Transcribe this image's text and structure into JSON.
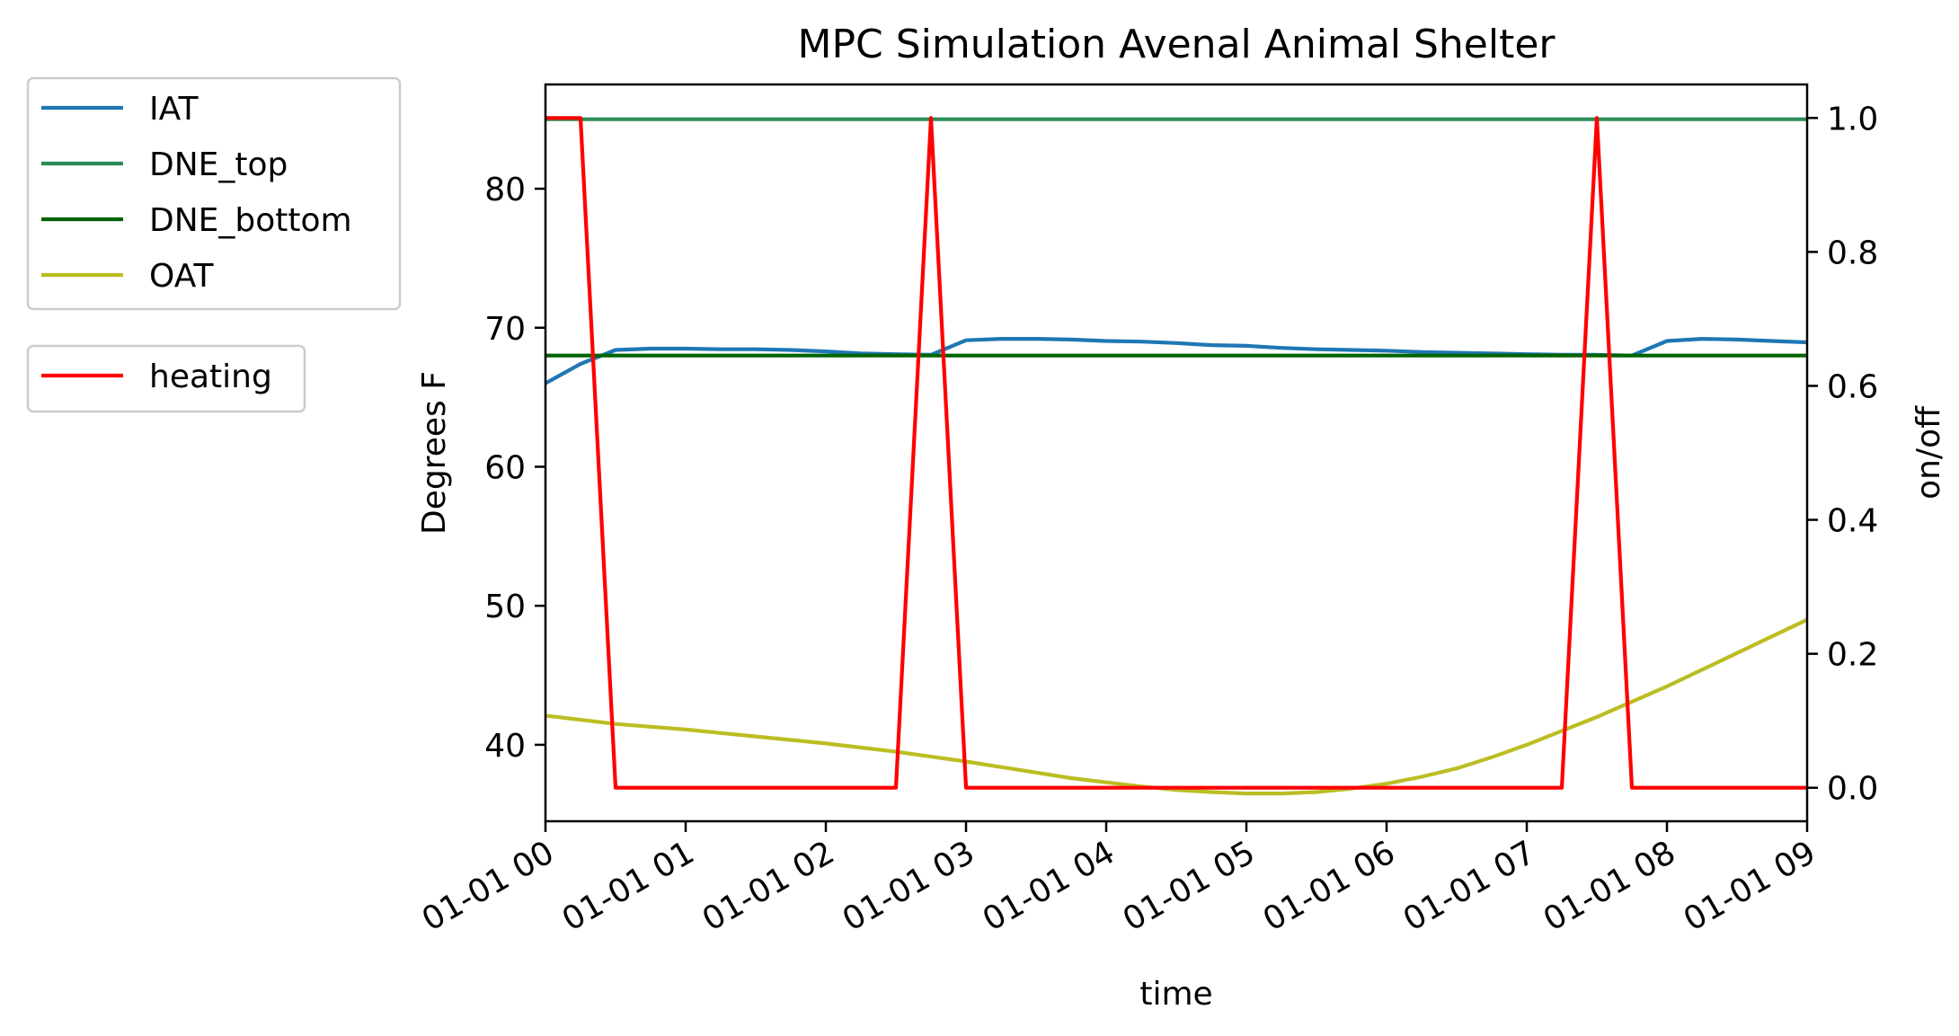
{
  "chart_data": {
    "type": "line",
    "title": "MPC Simulation Avenal Animal Shelter",
    "xlabel": "time",
    "ylabel": "Degrees F",
    "y2label": "on/off",
    "xlim": [
      "01-01 00",
      "01-01 09"
    ],
    "x_ticks": [
      "01-01 00",
      "01-01 01",
      "01-01 02",
      "01-01 03",
      "01-01 04",
      "01-01 05",
      "01-01 06",
      "01-01 07",
      "01-01 08",
      "01-01 09"
    ],
    "ylim": [
      34.5,
      87.5
    ],
    "y_ticks": [
      40,
      50,
      60,
      70,
      80
    ],
    "y2lim": [
      -0.05,
      1.05
    ],
    "y2_ticks": [
      "0.0",
      "0.2",
      "0.4",
      "0.6",
      "0.8",
      "1.0"
    ],
    "grid": false,
    "legend_left_axis": [
      "IAT",
      "DNE_top",
      "DNE_bottom",
      "OAT"
    ],
    "legend_right_axis": [
      "heating"
    ],
    "legend_placement": "outside-left",
    "x_hours": [
      0,
      0.25,
      0.5,
      0.75,
      1,
      1.25,
      1.5,
      1.75,
      2,
      2.25,
      2.5,
      2.75,
      3,
      3.25,
      3.5,
      3.75,
      4,
      4.25,
      4.5,
      4.75,
      5,
      5.25,
      5.5,
      5.75,
      6,
      6.25,
      6.5,
      6.75,
      7,
      7.25,
      7.5,
      7.75,
      8,
      8.25,
      8.5,
      8.75,
      9
    ],
    "series": [
      {
        "name": "IAT",
        "axis": "left",
        "color": "#1f77b4",
        "values": [
          66.0,
          67.4,
          68.4,
          68.5,
          68.5,
          68.45,
          68.45,
          68.4,
          68.3,
          68.15,
          68.1,
          68.05,
          69.1,
          69.2,
          69.2,
          69.15,
          69.05,
          69.0,
          68.9,
          68.75,
          68.7,
          68.55,
          68.45,
          68.4,
          68.35,
          68.25,
          68.2,
          68.15,
          68.1,
          68.05,
          68.05,
          68.0,
          69.05,
          69.2,
          69.15,
          69.05,
          68.95
        ]
      },
      {
        "name": "DNE_top",
        "axis": "left",
        "color": "#2e8b57",
        "values": [
          85,
          85,
          85,
          85,
          85,
          85,
          85,
          85,
          85,
          85,
          85,
          85,
          85,
          85,
          85,
          85,
          85,
          85,
          85,
          85,
          85,
          85,
          85,
          85,
          85,
          85,
          85,
          85,
          85,
          85,
          85,
          85,
          85,
          85,
          85,
          85,
          85
        ]
      },
      {
        "name": "DNE_bottom",
        "axis": "left",
        "color": "#006400",
        "values": [
          68,
          68,
          68,
          68,
          68,
          68,
          68,
          68,
          68,
          68,
          68,
          68,
          68,
          68,
          68,
          68,
          68,
          68,
          68,
          68,
          68,
          68,
          68,
          68,
          68,
          68,
          68,
          68,
          68,
          68,
          68,
          68,
          68,
          68,
          68,
          68,
          68
        ]
      },
      {
        "name": "OAT",
        "axis": "left",
        "color": "#bcbd22",
        "values": [
          42.1,
          41.8,
          41.5,
          41.3,
          41.1,
          40.85,
          40.6,
          40.35,
          40.1,
          39.8,
          39.5,
          39.15,
          38.8,
          38.4,
          38.0,
          37.6,
          37.3,
          37.0,
          36.75,
          36.6,
          36.5,
          36.5,
          36.6,
          36.85,
          37.2,
          37.7,
          38.3,
          39.1,
          40.0,
          41.0,
          42.0,
          43.1,
          44.2,
          45.4,
          46.6,
          47.8,
          49.0
        ]
      },
      {
        "name": "heating",
        "axis": "right",
        "color": "#ff0000",
        "values": [
          1,
          1,
          0,
          0,
          0,
          0,
          0,
          0,
          0,
          0,
          0,
          1,
          0,
          0,
          0,
          0,
          0,
          0,
          0,
          0,
          0,
          0,
          0,
          0,
          0,
          0,
          0,
          0,
          0,
          0,
          1,
          0,
          0,
          0,
          0,
          0,
          0
        ]
      }
    ]
  }
}
